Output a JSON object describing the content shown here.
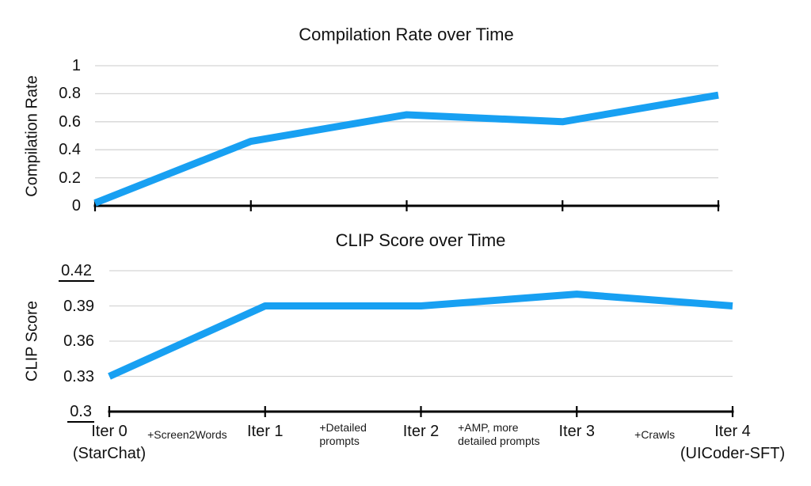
{
  "style": {
    "background": "#ffffff",
    "line_color": "#18a0f2",
    "gridline_color": "#d5d5d5",
    "axis_color": "#000000",
    "text_color": "#111111"
  },
  "chart_data": [
    {
      "type": "line",
      "title": "Compilation Rate over Time",
      "ylabel": "Compilation Rate",
      "xlabel": "",
      "categories": [
        "Iter 0 (StarChat)",
        "Iter 1",
        "Iter 2",
        "Iter 3",
        "Iter 4 (UICoder-SFT)"
      ],
      "values": [
        0.02,
        0.46,
        0.65,
        0.6,
        0.79
      ],
      "ylim": [
        0,
        1
      ],
      "yticks": [
        0,
        0.2,
        0.4,
        0.6,
        0.8,
        1
      ],
      "ytick_labels": [
        "0",
        "0.2",
        "0.4",
        "0.6",
        "0.8",
        "1"
      ],
      "underlined_ytick_labels": [],
      "grid": true,
      "legend": "none",
      "line_color": "#18a0f2"
    },
    {
      "type": "line",
      "title": "CLIP Score over Time",
      "ylabel": "CLIP Score",
      "xlabel": "",
      "categories": [
        "Iter 0 (StarChat)",
        "Iter 1",
        "Iter 2",
        "Iter 3",
        "Iter 4 (UICoder-SFT)"
      ],
      "values": [
        0.33,
        0.39,
        0.39,
        0.4,
        0.39
      ],
      "ylim": [
        0.3,
        0.42
      ],
      "yticks": [
        0.3,
        0.33,
        0.36,
        0.39,
        0.42
      ],
      "ytick_labels": [
        "0.3",
        "0.33",
        "0.36",
        "0.39",
        "0.42"
      ],
      "underlined_ytick_labels": [
        "0.3",
        "0.42"
      ],
      "grid": true,
      "legend": "none",
      "line_color": "#18a0f2"
    }
  ],
  "x_axis": {
    "iteration_labels": [
      {
        "line1": "Iter 0",
        "line2": "(StarChat)"
      },
      {
        "line1": "Iter 1",
        "line2": ""
      },
      {
        "line1": "Iter 2",
        "line2": ""
      },
      {
        "line1": "Iter 3",
        "line2": ""
      },
      {
        "line1": "Iter 4",
        "line2": "(UICoder-SFT)"
      }
    ],
    "between_labels": [
      {
        "lines": [
          "+Screen2Words"
        ]
      },
      {
        "lines": [
          "+Detailed",
          "prompts"
        ]
      },
      {
        "lines": [
          "+AMP, more",
          "detailed prompts"
        ]
      },
      {
        "lines": [
          "+Crawls"
        ]
      }
    ]
  }
}
